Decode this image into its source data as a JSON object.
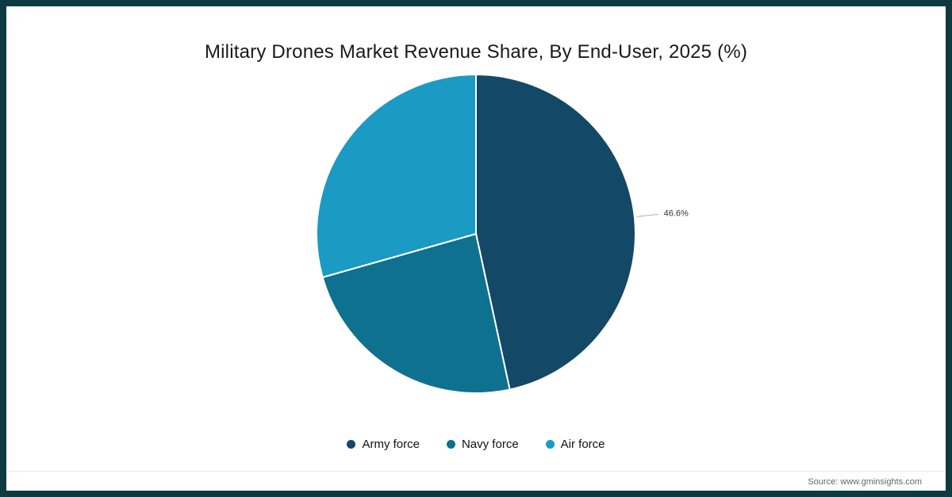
{
  "frame_color": "#0c3a40",
  "title": "Military Drones Market Revenue Share, By End-User, 2025 (%)",
  "footer": {
    "source": "Source: www.gminsights.com"
  },
  "chart_data": {
    "type": "pie",
    "title": "Military Drones Market Revenue Share, By End-User, 2025 (%)",
    "labels": [
      "Army force",
      "Navy force",
      "Air force"
    ],
    "values": [
      46.6,
      24.0,
      29.4
    ],
    "colors": [
      "#134866",
      "#0e718f",
      "#1b9ac3"
    ],
    "data_labels": [
      "46.6%",
      null,
      null
    ],
    "data_label_color": "#333333",
    "leader_line_color": "#b0b0b0",
    "legend_position": "bottom",
    "start_angle_deg": 0,
    "direction": "clockwise"
  }
}
